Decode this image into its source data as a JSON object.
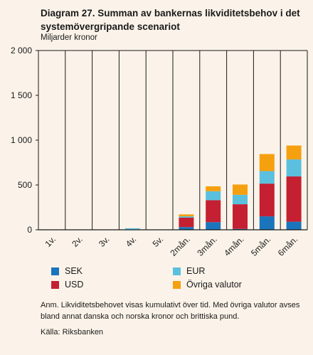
{
  "chart_data": {
    "type": "bar",
    "stacked": true,
    "title": "Diagram 27. Summan av bankernas likviditetsbehov i det systemövergripande scenariot",
    "ylabel": "Miljarder kronor",
    "categories": [
      "1v.",
      "2v.",
      "3v.",
      "4v.",
      "5v.",
      "2mån.",
      "3mån.",
      "4mån.",
      "5mån.",
      "6mån."
    ],
    "ylim": [
      0,
      2000
    ],
    "yticks": [
      0,
      500,
      1000,
      1500,
      2000
    ],
    "ytick_labels": [
      "0",
      "500",
      "1 000",
      "1 500",
      "2 000"
    ],
    "series": [
      {
        "name": "SEK",
        "color": "#1a75bc",
        "values": [
          0,
          0,
          0,
          5,
          0,
          30,
          85,
          10,
          150,
          90
        ]
      },
      {
        "name": "USD",
        "color": "#c42032",
        "values": [
          0,
          0,
          0,
          0,
          0,
          105,
          245,
          275,
          365,
          505
        ]
      },
      {
        "name": "EUR",
        "color": "#5bc0de",
        "values": [
          0,
          0,
          0,
          12,
          0,
          15,
          100,
          105,
          140,
          190
        ]
      },
      {
        "name": "Övriga valutor",
        "color": "#f5a00f",
        "values": [
          0,
          0,
          0,
          0,
          0,
          22,
          55,
          115,
          190,
          155
        ]
      }
    ],
    "grid": {
      "vertical": true,
      "horizontal": false
    },
    "legend_position": "bottom"
  },
  "note": "Anm. Likviditetsbehovet visas kumulativt över tid. Med övriga valutor avses bland annat danska och norska kronor och brittiska pund.",
  "source": "Källa: Riksbanken"
}
